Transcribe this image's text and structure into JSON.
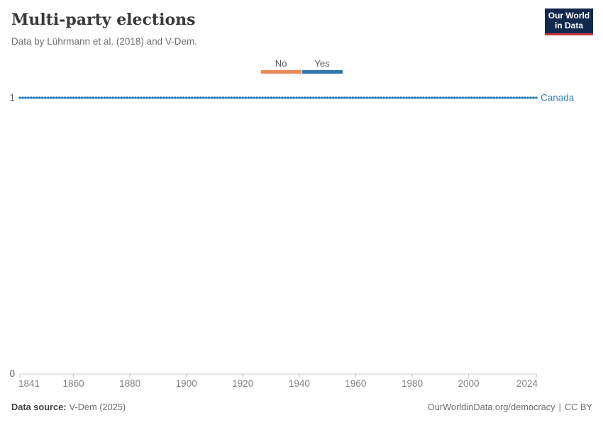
{
  "header": {
    "title": "Multi-party elections",
    "subtitle": "Data by Lührmann et al. (2018) and V-Dem."
  },
  "logo": {
    "line1": "Our World",
    "line2": "in Data",
    "bg_color": "#12294D",
    "accent_color": "#C9333C"
  },
  "legend": {
    "items": [
      {
        "label": "No",
        "color": "#EC8A5D"
      },
      {
        "label": "Yes",
        "color": "#3077B2"
      }
    ]
  },
  "chart_data": {
    "type": "line",
    "title": "Multi-party elections",
    "subtitle": "Data by Lührmann et al. (2018) and V-Dem.",
    "series": [
      {
        "name": "Canada",
        "color": "#3182BD",
        "year_start": 1841,
        "year_end": 2024,
        "value": 1,
        "category": "Yes",
        "note": "constant value 1 (Yes) for every year 1841-2024, drawn as dotted/beaded line"
      }
    ],
    "x_ticks": [
      "1841",
      "1860",
      "1880",
      "1900",
      "1920",
      "1940",
      "1960",
      "1980",
      "2000",
      "2024"
    ],
    "y_ticks": [
      "0",
      "1"
    ],
    "xlim": [
      1841,
      2024
    ],
    "ylim": [
      0,
      1
    ],
    "grid": false,
    "legend_position": "top-center",
    "axis_color": "#cdcdcd",
    "tick_color": "#c0c0c0",
    "tick_label_color": "#828282",
    "y_label_color": "#5b5b5b"
  },
  "footer": {
    "source_label": "Data source:",
    "source_value": "V-Dem (2025)",
    "right": {
      "link": "OurWorldinData.org/democracy",
      "divider": "|",
      "license": "CC BY"
    }
  }
}
